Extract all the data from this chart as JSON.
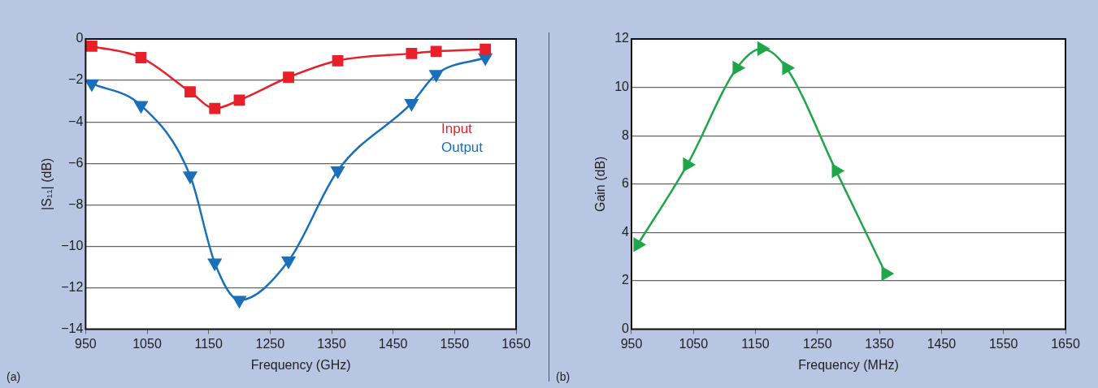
{
  "chart_data": [
    {
      "type": "line",
      "xlabel": "Frequency (GHz)",
      "ylabel": "|S₁₁| (dB)",
      "xlim": [
        950,
        1650
      ],
      "xticks": [
        950,
        1050,
        1150,
        1250,
        1350,
        1450,
        1550,
        1650
      ],
      "ylim": [
        -14,
        0
      ],
      "yticks": [
        -14,
        -12,
        -10,
        -8,
        -6,
        -4,
        -2,
        0
      ],
      "grid": "y",
      "legend": "right",
      "annotations": [
        "(a)"
      ],
      "series": [
        {
          "name": "Input",
          "color": "#e8202a",
          "marker": "square",
          "x": [
            960,
            1040,
            1120,
            1160,
            1200,
            1280,
            1360,
            1480,
            1520,
            1600
          ],
          "values": [
            -0.35,
            -0.9,
            -2.55,
            -3.35,
            -2.95,
            -1.85,
            -1.05,
            -0.7,
            -0.6,
            -0.5
          ]
        },
        {
          "name": "Output",
          "color": "#1a6fba",
          "marker": "triangle",
          "x": [
            960,
            1040,
            1120,
            1160,
            1200,
            1280,
            1360,
            1480,
            1520,
            1600
          ],
          "values": [
            -2.15,
            -3.2,
            -6.6,
            -10.8,
            -12.6,
            -10.7,
            -6.35,
            -3.1,
            -1.7,
            -0.9
          ]
        }
      ]
    },
    {
      "type": "line",
      "xlabel": "Frequency (MHz)",
      "ylabel": "Gain (dB)",
      "xlim": [
        950,
        1650
      ],
      "xticks": [
        950,
        1050,
        1150,
        1250,
        1350,
        1450,
        1550,
        1650
      ],
      "ylim": [
        0,
        12
      ],
      "yticks": [
        0,
        2,
        4,
        6,
        8,
        10,
        12
      ],
      "grid": "y",
      "annotations": [
        "(b)"
      ],
      "series": [
        {
          "color": "#1fa64a",
          "marker": "triangle",
          "x": [
            960,
            1040,
            1120,
            1160,
            1200,
            1280,
            1360
          ],
          "values": [
            3.5,
            6.8,
            10.8,
            11.6,
            10.8,
            6.55,
            2.3
          ]
        }
      ]
    }
  ]
}
